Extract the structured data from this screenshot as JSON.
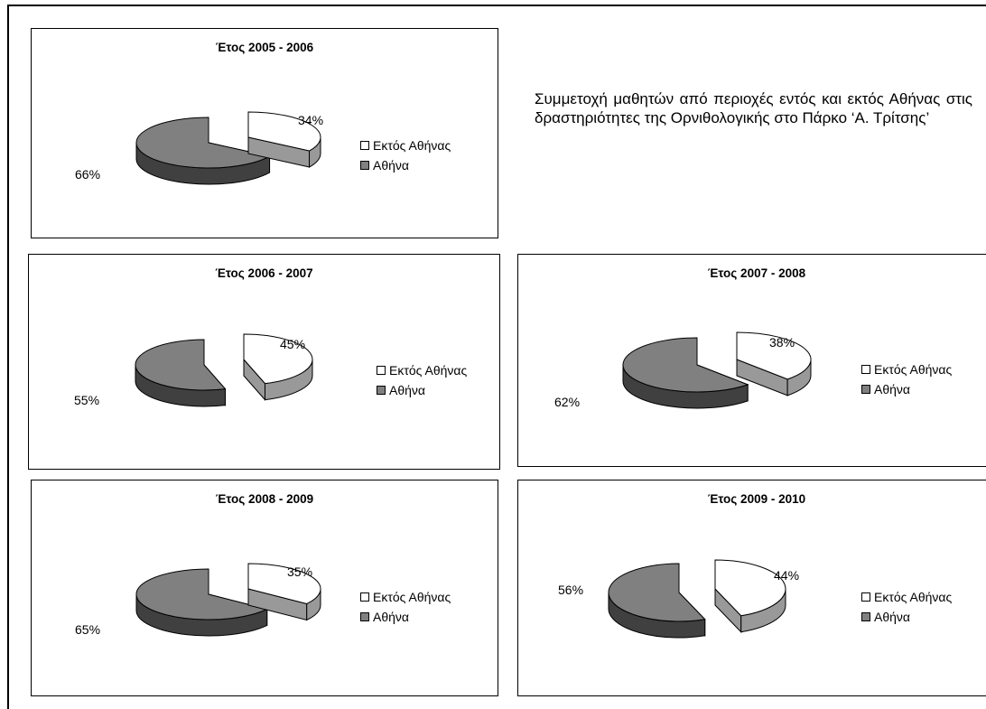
{
  "caption": "Συμμετοχή μαθητών από περιοχές εντός και εκτός Αθήνας στις δραστηριότητες της Ορνιθολογικής στο Πάρκο ‘Α. Τρίτσης’",
  "legend": {
    "outside": "Εκτός Αθήνας",
    "athens": "Αθήνα"
  },
  "colors": {
    "outside_top": "#ffffff",
    "outside_side": "#999999",
    "athens_top": "#808080",
    "athens_side": "#404040"
  },
  "chart_data": [
    {
      "type": "pie",
      "title": "Έτος 2005 - 2006",
      "categories": [
        "Εκτός Αθήνας",
        "Αθήνα"
      ],
      "values": [
        34,
        66
      ],
      "data_labels": [
        "34%",
        "66%"
      ],
      "legend": "right"
    },
    {
      "type": "pie",
      "title": "Έτος 2006 - 2007",
      "categories": [
        "Εκτός Αθήνας",
        "Αθήνα"
      ],
      "values": [
        45,
        55
      ],
      "data_labels": [
        "45%",
        "55%"
      ],
      "legend": "right"
    },
    {
      "type": "pie",
      "title": "Έτος 2007 - 2008",
      "categories": [
        "Εκτός Αθήνας",
        "Αθήνα"
      ],
      "values": [
        38,
        62
      ],
      "data_labels": [
        "38%",
        "62%"
      ],
      "legend": "right"
    },
    {
      "type": "pie",
      "title": "Έτος 2008 - 2009",
      "categories": [
        "Εκτός Αθήνας",
        "Αθήνα"
      ],
      "values": [
        35,
        65
      ],
      "data_labels": [
        "35%",
        "65%"
      ],
      "legend": "right"
    },
    {
      "type": "pie",
      "title": "Έτος 2009 - 2010",
      "categories": [
        "Εκτός Αθήνας",
        "Αθήνα"
      ],
      "values": [
        44,
        56
      ],
      "data_labels": [
        "44%",
        "56%"
      ],
      "legend": "right"
    }
  ]
}
